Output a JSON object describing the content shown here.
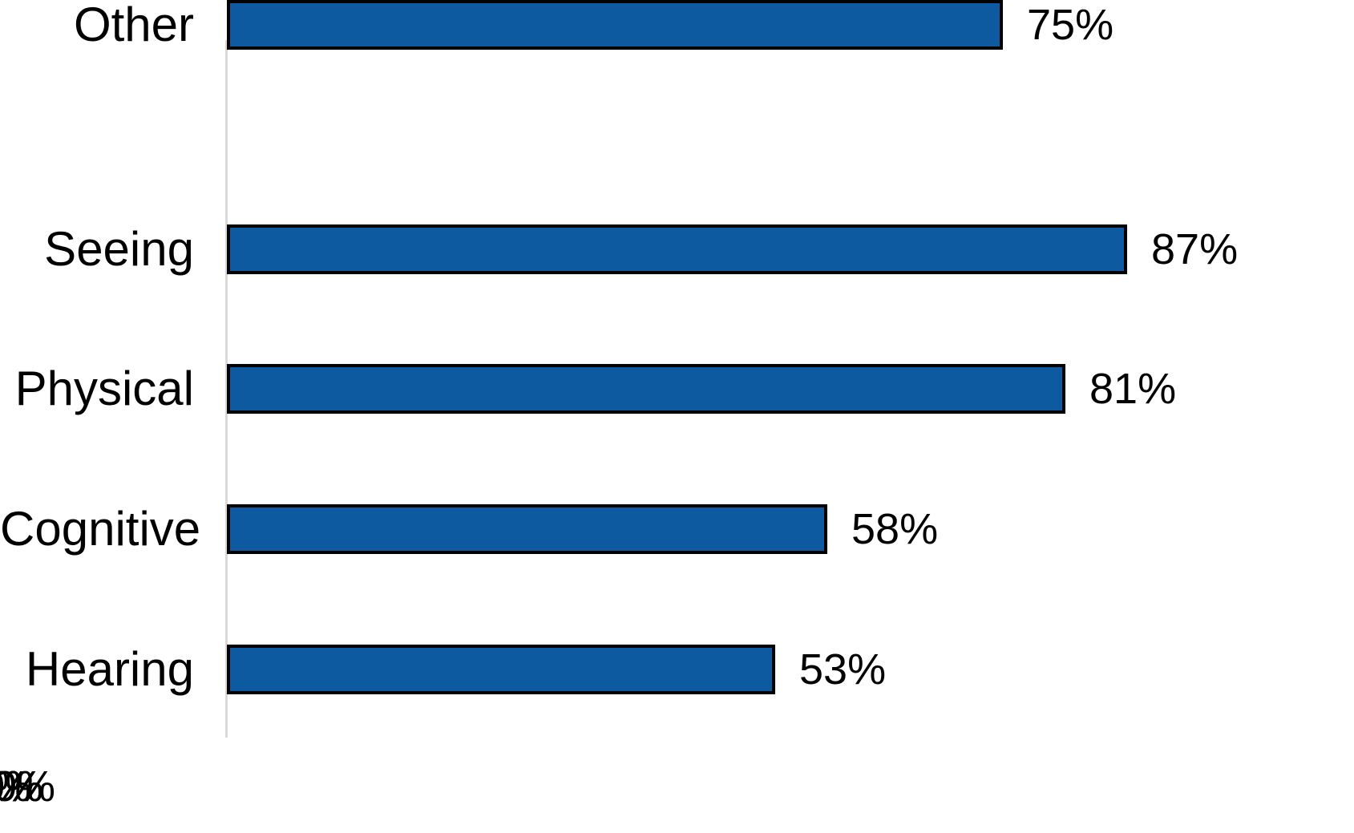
{
  "chart_data": {
    "type": "bar",
    "orientation": "horizontal",
    "title": "",
    "xlabel": "",
    "ylabel": "",
    "categories": [
      "Seeing",
      "Physical",
      "Cognitive",
      "Hearing",
      "Other"
    ],
    "values": [
      87,
      81,
      58,
      53,
      75
    ],
    "value_labels": [
      "87%",
      "81%",
      "58%",
      "53%",
      "75%"
    ],
    "x_ticks": [
      "0%",
      "20%",
      "40%",
      "60%",
      "80%",
      "100%"
    ],
    "xlim": [
      0,
      100
    ],
    "grid": false,
    "legend": false,
    "colors": {
      "bar_fill": "#0e5aa0",
      "bar_border": "#000000",
      "axis_line": "#d9d9d9",
      "text": "#000000",
      "background": "#ffffff"
    }
  }
}
